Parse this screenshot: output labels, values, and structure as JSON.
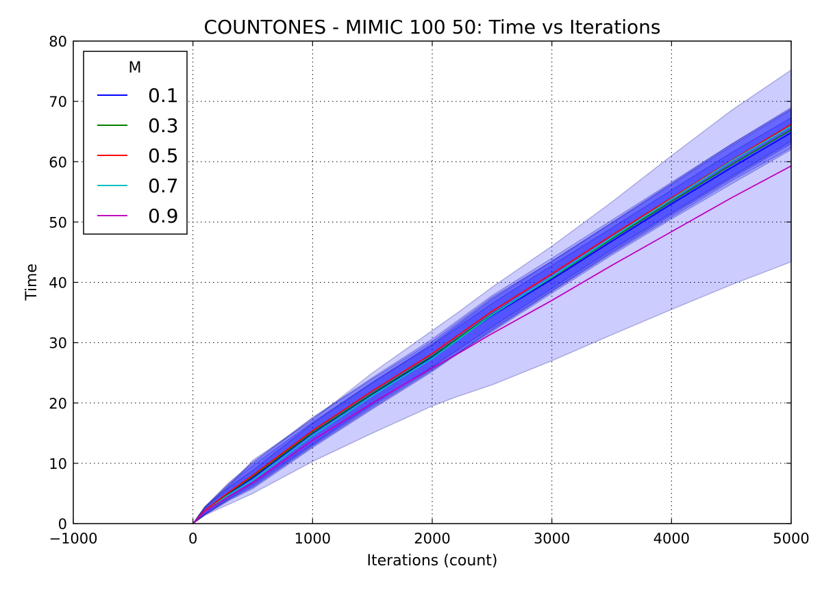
{
  "chart_data": {
    "type": "line",
    "title": "COUNTONES - MIMIC 100 50: Time vs Iterations",
    "xlabel": "Iterations (count)",
    "ylabel": "Time",
    "xlim": [
      -1000,
      5000
    ],
    "ylim": [
      0,
      80
    ],
    "xticks": [
      -1000,
      0,
      1000,
      2000,
      3000,
      4000,
      5000
    ],
    "xtick_labels": [
      "−1000",
      "0",
      "1000",
      "2000",
      "3000",
      "4000",
      "5000"
    ],
    "yticks": [
      0,
      10,
      20,
      30,
      40,
      50,
      60,
      70,
      80
    ],
    "ytick_labels": [
      "0",
      "10",
      "20",
      "30",
      "40",
      "50",
      "60",
      "70",
      "80"
    ],
    "grid": true,
    "legend": {
      "title": "M",
      "placement": "top-left"
    },
    "band_color": "#0000ff",
    "series": [
      {
        "name": "0.1",
        "color": "#0000ff",
        "x": [
          0,
          100,
          300,
          500,
          1000,
          1500,
          2000,
          2500,
          3000,
          3500,
          4000,
          4500,
          5000
        ],
        "y": [
          0,
          2.0,
          5.0,
          7.6,
          15.0,
          21.5,
          27.6,
          34.5,
          40.5,
          46.8,
          53.0,
          59.0,
          64.8
        ],
        "band_lo": [
          0,
          1.5,
          4.0,
          6.2,
          13.0,
          19.5,
          25.6,
          32.0,
          38.5,
          44.8,
          50.8,
          56.8,
          62.3
        ],
        "band_hi": [
          0,
          2.6,
          6.5,
          9.6,
          16.8,
          23.4,
          29.6,
          36.5,
          42.8,
          49.0,
          55.3,
          61.5,
          67.3
        ]
      },
      {
        "name": "0.3",
        "color": "#008000",
        "x": [
          0,
          100,
          300,
          500,
          1000,
          1500,
          2000,
          2500,
          3000,
          3500,
          4000,
          4500,
          5000
        ],
        "y": [
          0,
          2.1,
          5.1,
          7.8,
          15.1,
          21.6,
          27.8,
          34.7,
          40.8,
          47.2,
          53.4,
          59.5,
          65.3
        ],
        "band_lo": [
          0,
          1.5,
          4.0,
          6.0,
          12.8,
          19.2,
          25.4,
          31.8,
          38.2,
          44.5,
          50.5,
          56.3,
          62.0
        ],
        "band_hi": [
          0,
          2.8,
          6.8,
          10.0,
          17.5,
          24.0,
          30.2,
          37.5,
          43.5,
          49.8,
          56.2,
          62.6,
          68.6
        ]
      },
      {
        "name": "0.5",
        "color": "#ff0000",
        "x": [
          0,
          100,
          300,
          500,
          1000,
          1500,
          2000,
          2500,
          3000,
          3500,
          4000,
          4500,
          5000
        ],
        "y": [
          0,
          2.2,
          5.2,
          8.0,
          15.4,
          22.0,
          28.2,
          35.2,
          41.4,
          47.8,
          54.0,
          60.2,
          66.2
        ],
        "band_lo": [
          0,
          1.6,
          4.2,
          6.5,
          13.2,
          19.8,
          26.0,
          32.6,
          39.0,
          45.4,
          51.5,
          57.5,
          63.4
        ],
        "band_hi": [
          0,
          2.8,
          6.6,
          10.2,
          17.6,
          24.2,
          30.6,
          37.8,
          44.0,
          50.3,
          56.6,
          62.9,
          69.0
        ]
      },
      {
        "name": "0.7",
        "color": "#00bfbf",
        "x": [
          0,
          100,
          300,
          500,
          1000,
          1500,
          2000,
          2500,
          3000,
          3500,
          4000,
          4500,
          5000
        ],
        "y": [
          0,
          2.0,
          4.8,
          7.2,
          14.6,
          21.2,
          27.4,
          34.6,
          40.9,
          47.4,
          53.8,
          60.1,
          65.9
        ],
        "band_lo": [
          0,
          1.4,
          3.8,
          5.8,
          12.6,
          19.0,
          25.2,
          32.2,
          38.6,
          45.0,
          51.2,
          57.2,
          63.0
        ],
        "band_hi": [
          0,
          2.6,
          6.0,
          8.8,
          16.6,
          23.4,
          29.8,
          37.2,
          43.5,
          49.9,
          56.4,
          62.9,
          68.8
        ]
      },
      {
        "name": "0.9",
        "color": "#bf00bf",
        "x": [
          0,
          100,
          300,
          500,
          1000,
          1500,
          2000,
          2200,
          2500,
          3000,
          3500,
          4000,
          4500,
          5000
        ],
        "y": [
          0,
          2.0,
          4.5,
          6.8,
          13.8,
          20.0,
          25.8,
          28.0,
          31.5,
          37.0,
          42.8,
          48.4,
          54.0,
          59.3
        ],
        "band_lo": [
          0,
          1.4,
          3.2,
          5.0,
          10.3,
          15.0,
          19.5,
          21.0,
          23.0,
          27.0,
          31.3,
          35.5,
          39.6,
          43.4
        ],
        "band_hi": [
          0,
          2.8,
          6.2,
          10.5,
          17.2,
          25.0,
          32.0,
          34.8,
          39.2,
          46.0,
          53.3,
          61.0,
          68.5,
          75.2
        ]
      }
    ]
  }
}
